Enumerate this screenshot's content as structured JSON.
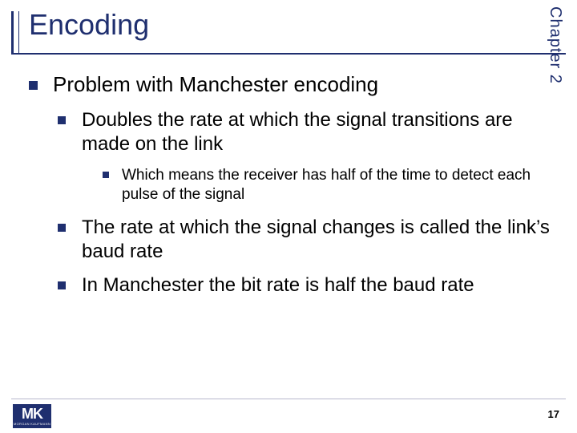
{
  "title": "Encoding",
  "side_label": "Chapter 2",
  "colors": {
    "brand": "#1f2f6f",
    "text": "#000000",
    "bg": "#ffffff",
    "divider": "#b8b8cc"
  },
  "bullets": {
    "main": "Problem with Manchester encoding",
    "sub1": "Doubles the rate at which the signal transitions are made on the link",
    "sub1a": "Which means the receiver has half of the time to detect each pulse of the signal",
    "sub2": "The rate at which the signal changes is called the link’s baud rate",
    "sub3": "In Manchester the bit rate is half the baud rate"
  },
  "logo": {
    "initials": "MK",
    "publisher": "MORGAN KAUFMANN"
  },
  "page_number": "17"
}
